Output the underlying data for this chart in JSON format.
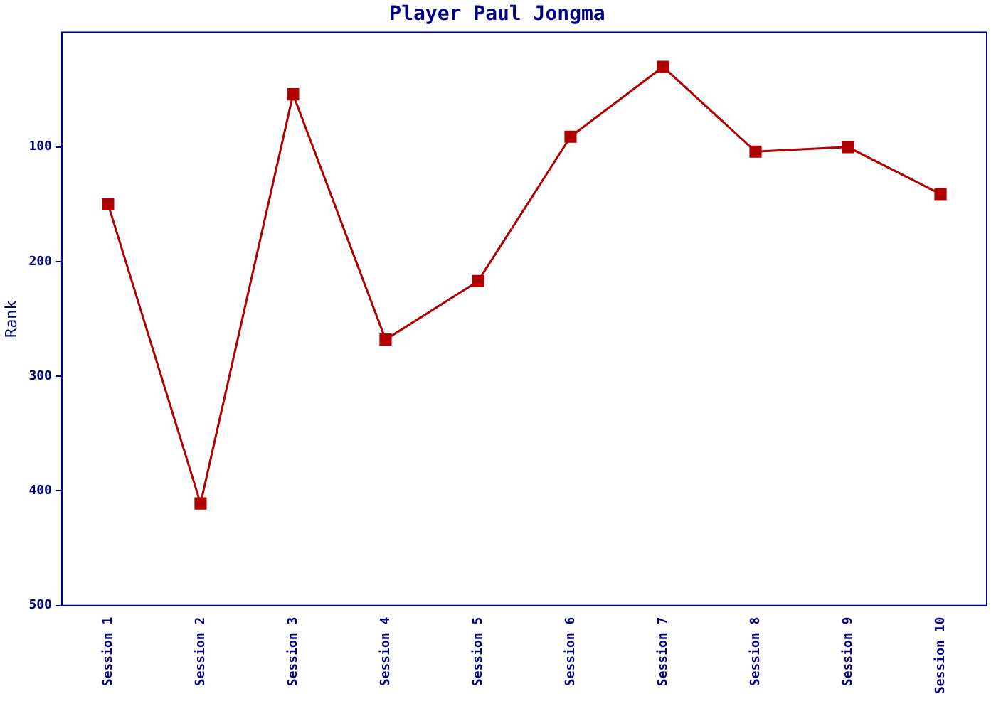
{
  "chart_data": {
    "type": "line",
    "title": "Player Paul Jongma",
    "ylabel": "Rank",
    "categories": [
      "Session 1",
      "Session 2",
      "Session 3",
      "Session 4",
      "Session 5",
      "Session 6",
      "Session 7",
      "Session 8",
      "Session 9",
      "Session 10"
    ],
    "series": [
      {
        "color": "#b00000",
        "values": [
          150,
          411,
          54,
          268,
          217,
          91,
          30,
          104,
          100,
          141
        ]
      }
    ],
    "ylim": [
      500,
      0
    ],
    "yticks": [
      100,
      200,
      300,
      400,
      500
    ],
    "grid": false,
    "legend": false,
    "marker": "square",
    "line_style": "solid"
  }
}
